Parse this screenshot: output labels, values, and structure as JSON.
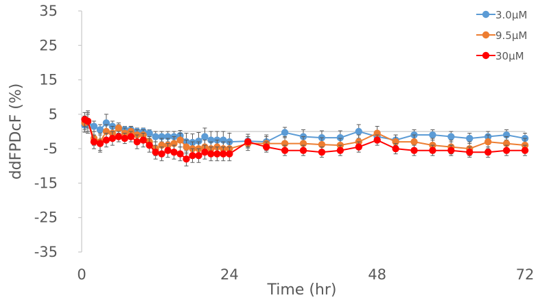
{
  "chart_data": {
    "type": "line",
    "title": "",
    "xlabel": "Time (hr)",
    "ylabel": "ddFPDcF (%)",
    "xlim": [
      0,
      72
    ],
    "ylim": [
      -35,
      35
    ],
    "xticks": [
      0,
      24,
      48,
      72
    ],
    "xtick_labels": [
      "0",
      "24",
      "48",
      "72"
    ],
    "yticks": [
      35,
      25,
      15,
      5,
      -5,
      -15,
      -25,
      -35
    ],
    "ytick_labels": [
      "35",
      "25",
      "15",
      "5",
      "-5",
      "-15",
      "-25",
      "-35"
    ],
    "grid": false,
    "legend_position": "top-right",
    "x": [
      0.5,
      1,
      2,
      3,
      4,
      5,
      6,
      7,
      8,
      9,
      10,
      11,
      12,
      13,
      14,
      15,
      16,
      17,
      18,
      19,
      20,
      21,
      22,
      23,
      24,
      27,
      30,
      33,
      36,
      39,
      42,
      45,
      48,
      51,
      54,
      57,
      60,
      63,
      66,
      69,
      72
    ],
    "series": [
      {
        "name": "3.0μM",
        "color": "#5B9BD5",
        "values": [
          1.8,
          2.5,
          1.5,
          0.5,
          2.5,
          1.5,
          1.0,
          0.5,
          0.5,
          0.0,
          0.0,
          -0.5,
          -1.5,
          -1.5,
          -1.5,
          -1.5,
          -1.2,
          -3.0,
          -3.2,
          -2.8,
          -1.5,
          -2.5,
          -2.5,
          -2.5,
          -3.0,
          -2.8,
          -3.0,
          -0.3,
          -1.5,
          -1.8,
          -1.8,
          0.0,
          -1.5,
          -2.5,
          -1.0,
          -1.0,
          -1.5,
          -2.0,
          -1.5,
          -1.0,
          -2.0
        ],
        "errors": [
          2.0,
          3.0,
          1.5,
          1.5,
          2.5,
          1.5,
          1.0,
          1.0,
          1.0,
          1.0,
          1.0,
          1.0,
          1.5,
          1.5,
          1.5,
          1.5,
          1.5,
          2.5,
          2.5,
          2.5,
          2.5,
          2.5,
          2.5,
          2.5,
          2.5,
          2.0,
          2.0,
          1.5,
          2.0,
          2.0,
          2.0,
          2.0,
          1.5,
          1.5,
          1.5,
          1.5,
          1.5,
          1.5,
          1.5,
          1.5,
          1.5
        ]
      },
      {
        "name": "9.5μM",
        "color": "#ED7D31",
        "values": [
          2.5,
          3.0,
          -2.0,
          -3.0,
          0.0,
          -0.5,
          1.0,
          -0.5,
          0.0,
          -1.0,
          -1.0,
          -3.0,
          -5.0,
          -4.0,
          -4.0,
          -3.5,
          -2.5,
          -4.5,
          -5.0,
          -5.0,
          -4.5,
          -5.0,
          -4.5,
          -5.0,
          -5.0,
          -3.5,
          -3.5,
          -3.5,
          -3.5,
          -3.8,
          -4.0,
          -3.0,
          -0.5,
          -3.0,
          -3.0,
          -4.0,
          -4.5,
          -5.0,
          -3.0,
          -3.5,
          -4.0
        ],
        "errors": [
          2.0,
          3.0,
          2.0,
          2.5,
          2.0,
          2.0,
          1.5,
          1.5,
          1.5,
          1.5,
          1.5,
          1.5,
          2.0,
          2.0,
          2.0,
          2.0,
          2.0,
          2.0,
          2.0,
          2.0,
          2.0,
          2.0,
          2.0,
          2.0,
          2.0,
          2.0,
          2.0,
          2.0,
          2.0,
          2.0,
          2.0,
          2.0,
          2.0,
          2.0,
          2.0,
          2.0,
          2.0,
          2.0,
          2.0,
          2.0,
          2.0
        ]
      },
      {
        "name": "30μM",
        "color": "#FF0000",
        "values": [
          3.5,
          3.0,
          -3.0,
          -3.5,
          -2.5,
          -2.0,
          -1.5,
          -2.0,
          -1.5,
          -3.0,
          -2.5,
          -4.0,
          -6.0,
          -6.5,
          -5.5,
          -6.0,
          -6.5,
          -8.0,
          -7.0,
          -7.0,
          -6.0,
          -6.5,
          -6.5,
          -6.5,
          -6.5,
          -3.0,
          -4.5,
          -5.5,
          -5.5,
          -6.0,
          -5.5,
          -4.5,
          -2.5,
          -5.0,
          -5.5,
          -5.5,
          -5.5,
          -6.0,
          -6.0,
          -5.5,
          -5.5
        ],
        "errors": [
          2.0,
          2.0,
          2.0,
          2.5,
          2.0,
          2.0,
          1.5,
          1.5,
          1.5,
          2.0,
          2.0,
          2.0,
          2.0,
          2.0,
          2.0,
          2.0,
          2.0,
          2.0,
          2.0,
          2.0,
          2.0,
          2.0,
          2.0,
          2.0,
          2.0,
          1.5,
          1.5,
          1.5,
          1.5,
          1.5,
          1.5,
          1.5,
          1.5,
          1.5,
          1.5,
          1.5,
          1.5,
          1.5,
          1.5,
          1.5,
          1.5
        ]
      }
    ]
  }
}
